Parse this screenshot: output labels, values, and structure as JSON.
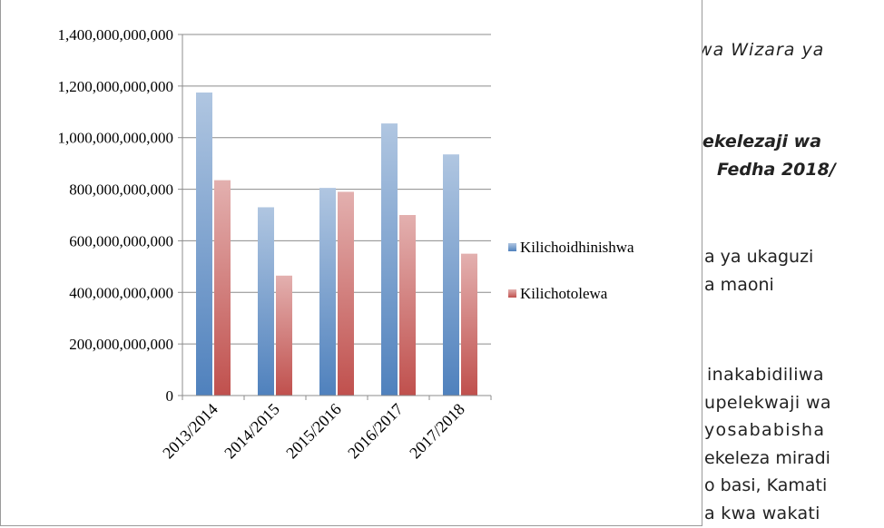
{
  "document_lines": [
    {
      "text": "uwa Wizara ya",
      "style": "it"
    },
    {
      "text": "ekelezaji wa",
      "style": "bi"
    },
    {
      "text": "Fedha 2018/",
      "style": "bi"
    },
    {
      "text": "a ya ukaguzi",
      "style": ""
    },
    {
      "text": "a maoni",
      "style": ""
    },
    {
      "text": "inakabidiliwa",
      "style": ""
    },
    {
      "text": "upelekwaji wa",
      "style": ""
    },
    {
      "text": "yosababisha",
      "style": ""
    },
    {
      "text": "ekeleza miradi",
      "style": ""
    },
    {
      "text": "o basi, Kamati",
      "style": ""
    },
    {
      "text": "a kwa wakati",
      "style": ""
    }
  ],
  "chart_data": {
    "type": "bar",
    "title": "",
    "xlabel": "",
    "ylabel": "",
    "categories": [
      "2013/2014",
      "2014/2015",
      "2015/2016",
      "2016/2017",
      "2017/2018"
    ],
    "series": [
      {
        "name": "Kilichoidhinishwa",
        "color": "#4f81bd",
        "values": [
          1175000000000,
          730000000000,
          805000000000,
          1055000000000,
          935000000000
        ]
      },
      {
        "name": "Kilichotolewa",
        "color": "#c0504d",
        "values": [
          835000000000,
          465000000000,
          790000000000,
          700000000000,
          550000000000
        ]
      }
    ],
    "ylim": [
      0,
      1400000000000
    ],
    "yticks": [
      {
        "value": 0,
        "label": "0"
      },
      {
        "value": 200000000000,
        "label": "200,000,000,000"
      },
      {
        "value": 400000000000,
        "label": "400,000,000,000"
      },
      {
        "value": 600000000000,
        "label": "600,000,000,000"
      },
      {
        "value": 800000000000,
        "label": "800,000,000,000"
      },
      {
        "value": 1000000000000,
        "label": "1,000,000,000,000"
      },
      {
        "value": 1200000000000,
        "label": "1,200,000,000,000"
      },
      {
        "value": 1400000000000,
        "label": "1,400,000,000,000"
      }
    ],
    "grid": true,
    "legend_position": "right"
  }
}
